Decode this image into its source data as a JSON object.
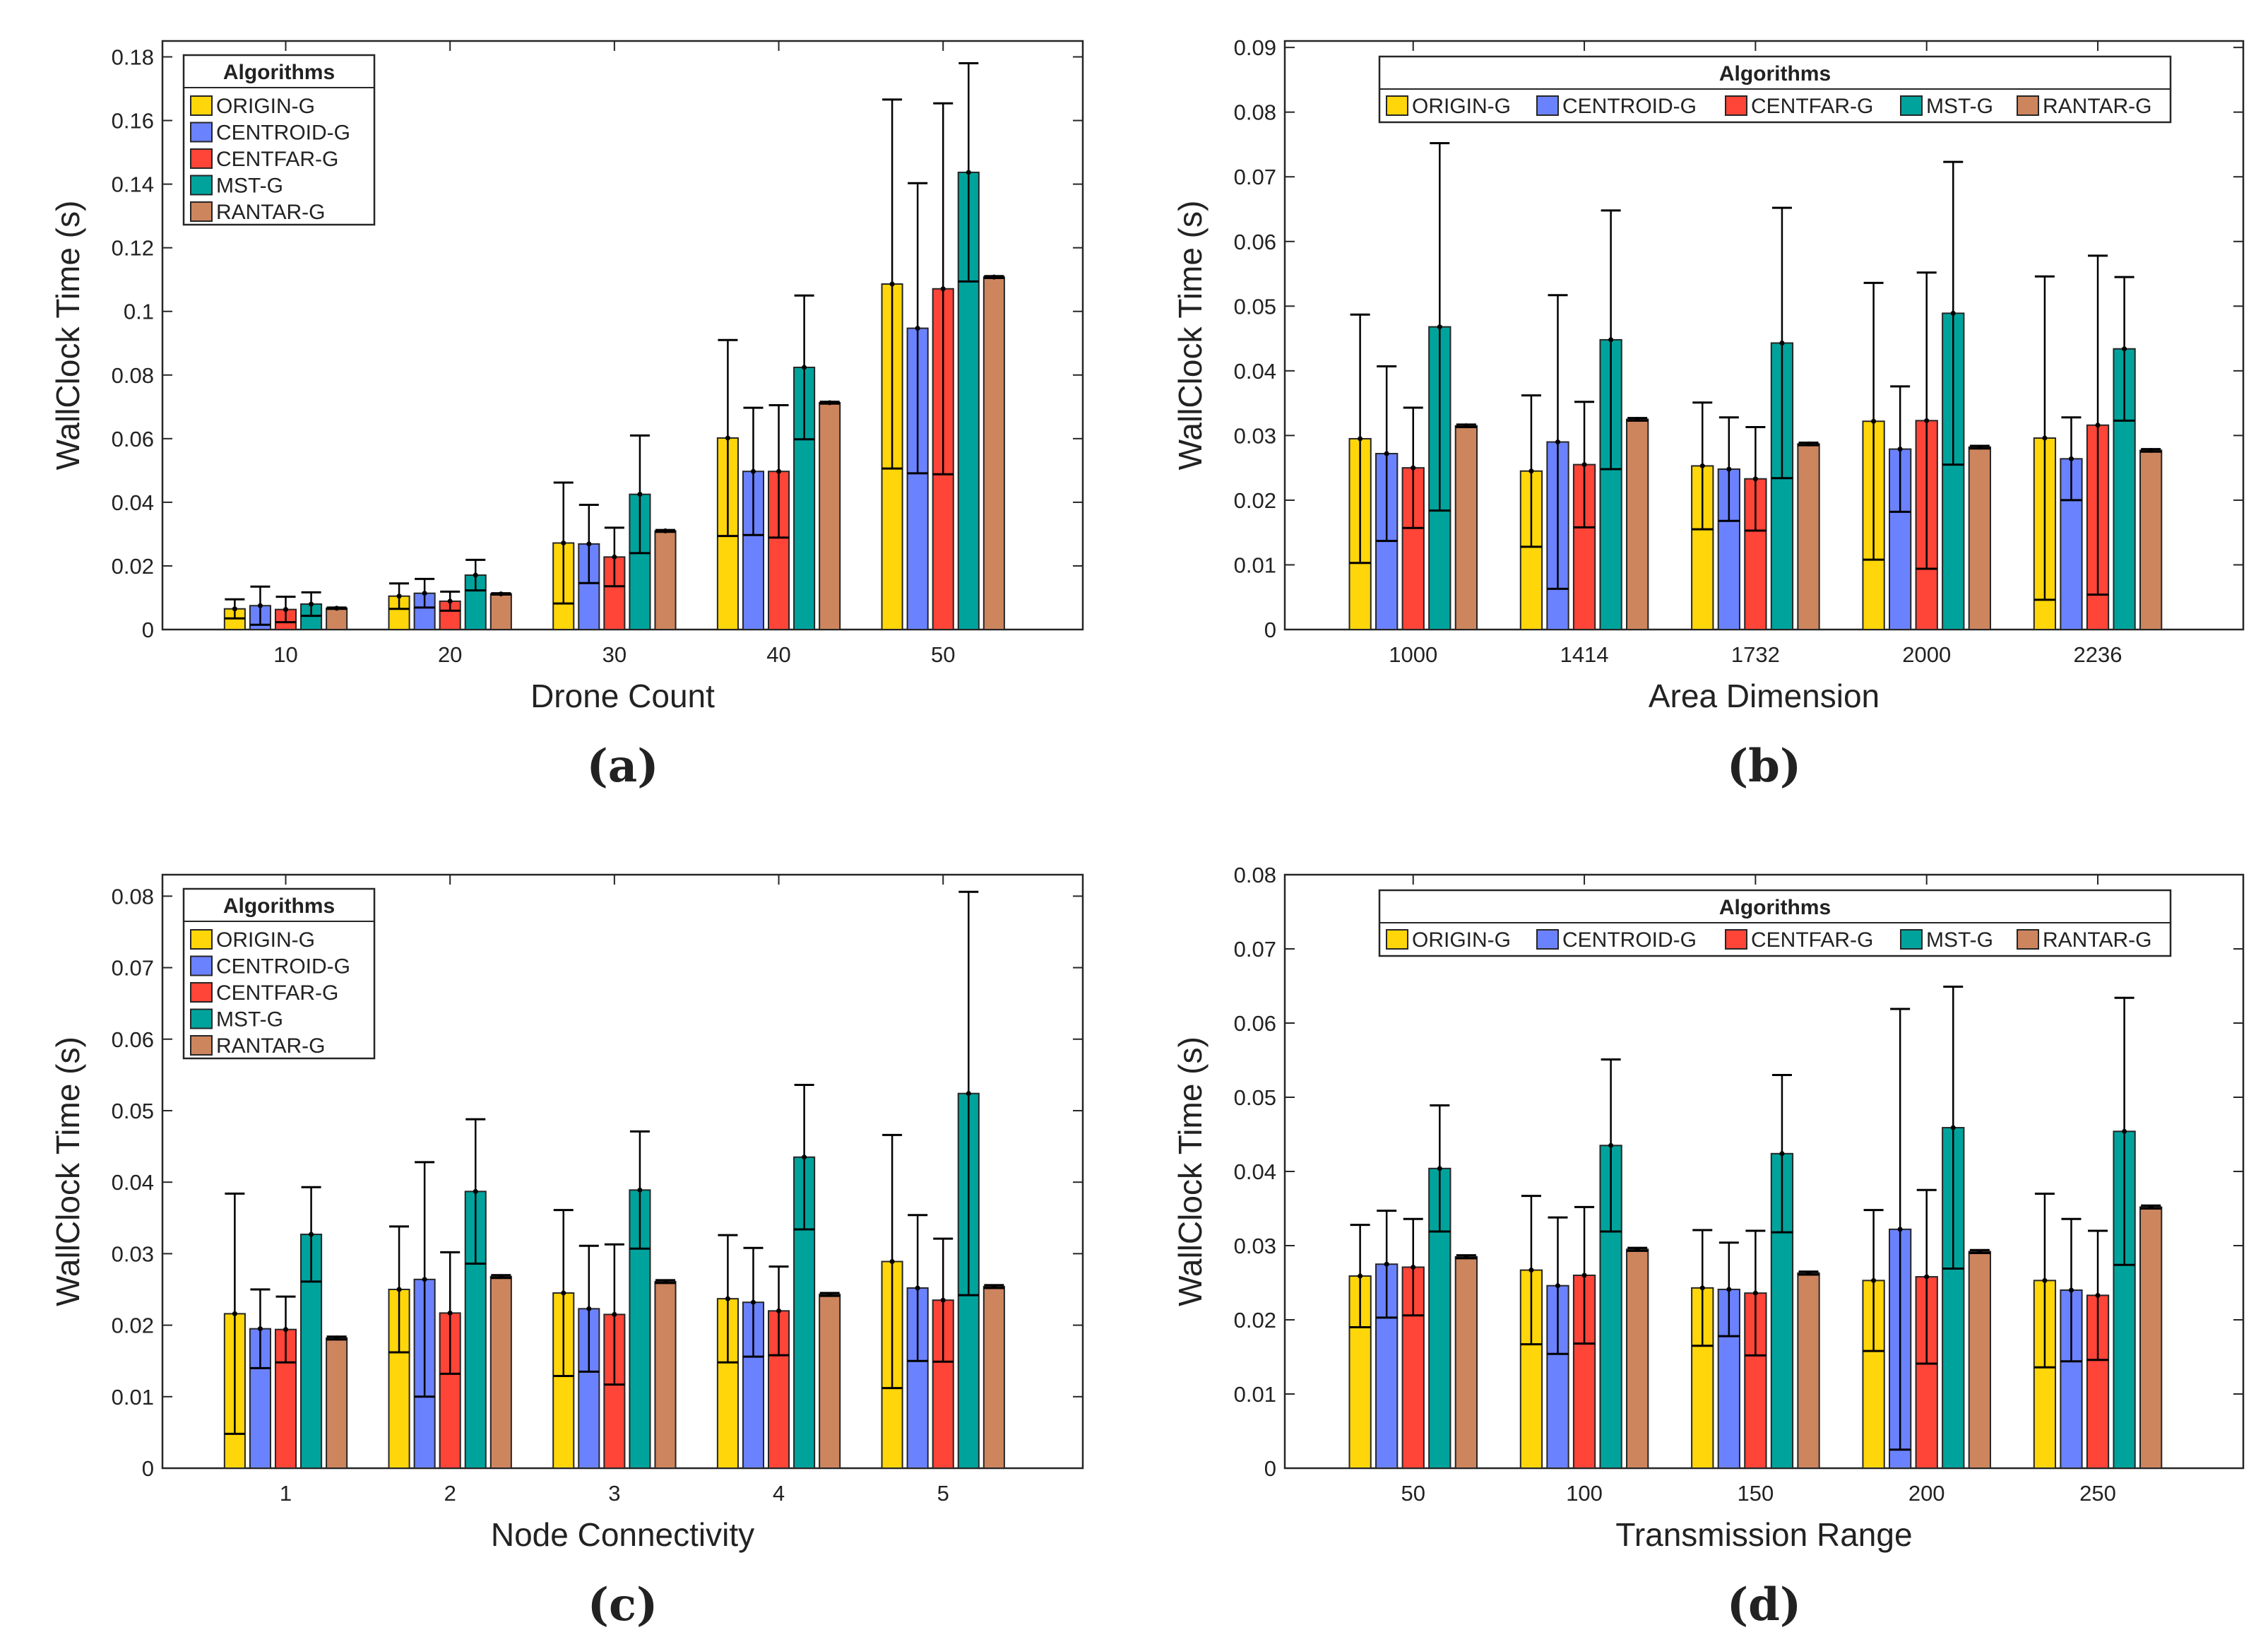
{
  "series_names": [
    "ORIGIN-G",
    "CENTROID-G",
    "CENTFAR-G",
    "MST-G",
    "RANTAR-G"
  ],
  "colors": {
    "ORIGIN-G": "#FFD60A",
    "CENTROID-G": "#6B82FF",
    "CENTFAR-G": "#FF4438",
    "MST-G": "#00A39C",
    "RANTAR-G": "#CD855E"
  },
  "chart_data": [
    {
      "type": "bar",
      "panel_label": "(a)",
      "title": "",
      "xlabel": "Drone Count",
      "ylabel": "WallClock Time (s)",
      "legend_title": "Algorithms",
      "legend_placement": "top-left",
      "legend_orientation": "vertical",
      "categories": [
        "10",
        "20",
        "30",
        "40",
        "50"
      ],
      "ylim": [
        0,
        0.185
      ],
      "yticks": [
        0,
        0.02,
        0.04,
        0.06,
        0.08,
        0.1,
        0.12,
        0.14,
        0.16,
        0.18
      ],
      "series": [
        {
          "name": "ORIGIN-G",
          "values": [
            0.0065,
            0.0105,
            0.0272,
            0.0602,
            0.1086
          ],
          "errors": [
            0.003,
            0.004,
            0.019,
            0.0308,
            0.058
          ]
        },
        {
          "name": "CENTROID-G",
          "values": [
            0.0075,
            0.0114,
            0.0269,
            0.0497,
            0.0947
          ],
          "errors": [
            0.006,
            0.0045,
            0.0123,
            0.02,
            0.0456
          ]
        },
        {
          "name": "CENTFAR-G",
          "values": [
            0.0063,
            0.0089,
            0.0228,
            0.0497,
            0.1071
          ],
          "errors": [
            0.004,
            0.003,
            0.0092,
            0.0208,
            0.0583
          ]
        },
        {
          "name": "MST-G",
          "values": [
            0.008,
            0.0171,
            0.0425,
            0.0824,
            0.1437
          ],
          "errors": [
            0.0037,
            0.0048,
            0.0185,
            0.0226,
            0.0343
          ]
        },
        {
          "name": "RANTAR-G",
          "values": [
            0.0067,
            0.0112,
            0.031,
            0.0713,
            0.1108
          ],
          "errors": [
            0.0002,
            0.0002,
            0.0003,
            0.0003,
            0.0003
          ]
        }
      ]
    },
    {
      "type": "bar",
      "panel_label": "(b)",
      "title": "",
      "xlabel": "Area Dimension",
      "ylabel": "WallClock Time (s)",
      "legend_title": "Algorithms",
      "legend_placement": "top",
      "legend_orientation": "horizontal",
      "categories": [
        "1000",
        "1414",
        "1732",
        "2000",
        "2236"
      ],
      "ylim": [
        0,
        0.091
      ],
      "yticks": [
        0,
        0.01,
        0.02,
        0.03,
        0.04,
        0.05,
        0.06,
        0.07,
        0.08,
        0.09
      ],
      "series": [
        {
          "name": "ORIGIN-G",
          "values": [
            0.0295,
            0.0245,
            0.0253,
            0.0322,
            0.0296
          ],
          "errors": [
            0.0192,
            0.0117,
            0.0098,
            0.0214,
            0.025
          ]
        },
        {
          "name": "CENTROID-G",
          "values": [
            0.0272,
            0.029,
            0.0248,
            0.0279,
            0.0264
          ],
          "errors": [
            0.0135,
            0.0227,
            0.008,
            0.0097,
            0.0064
          ]
        },
        {
          "name": "CENTFAR-G",
          "values": [
            0.025,
            0.0255,
            0.0233,
            0.0323,
            0.0316
          ],
          "errors": [
            0.0093,
            0.0097,
            0.008,
            0.0229,
            0.0262
          ]
        },
        {
          "name": "MST-G",
          "values": [
            0.0468,
            0.0448,
            0.0443,
            0.0489,
            0.0434
          ],
          "errors": [
            0.0284,
            0.02,
            0.0209,
            0.0234,
            0.0111
          ]
        },
        {
          "name": "RANTAR-G",
          "values": [
            0.0315,
            0.0325,
            0.0287,
            0.0282,
            0.0277
          ],
          "errors": [
            0.0002,
            0.0002,
            0.0002,
            0.0002,
            0.0002
          ]
        }
      ]
    },
    {
      "type": "bar",
      "panel_label": "(c)",
      "title": "",
      "xlabel": "Node Connectivity",
      "ylabel": "WallClock Time (s)",
      "legend_title": "Algorithms",
      "legend_placement": "top-left",
      "legend_orientation": "vertical",
      "categories": [
        "1",
        "2",
        "3",
        "4",
        "5"
      ],
      "ylim": [
        0,
        0.083
      ],
      "yticks": [
        0,
        0.01,
        0.02,
        0.03,
        0.04,
        0.05,
        0.06,
        0.07,
        0.08
      ],
      "series": [
        {
          "name": "ORIGIN-G",
          "values": [
            0.0216,
            0.025,
            0.0245,
            0.0237,
            0.0289
          ],
          "errors": [
            0.0168,
            0.0088,
            0.0116,
            0.0089,
            0.0177
          ]
        },
        {
          "name": "CENTROID-G",
          "values": [
            0.0195,
            0.0264,
            0.0223,
            0.0232,
            0.0252
          ],
          "errors": [
            0.0055,
            0.0164,
            0.0088,
            0.0076,
            0.0102
          ]
        },
        {
          "name": "CENTFAR-G",
          "values": [
            0.0194,
            0.0217,
            0.0215,
            0.022,
            0.0235
          ],
          "errors": [
            0.0046,
            0.0085,
            0.0098,
            0.0062,
            0.0086
          ]
        },
        {
          "name": "MST-G",
          "values": [
            0.0327,
            0.0387,
            0.0389,
            0.0435,
            0.0524
          ],
          "errors": [
            0.0066,
            0.0101,
            0.0082,
            0.0101,
            0.0282
          ]
        },
        {
          "name": "RANTAR-G",
          "values": [
            0.0182,
            0.0268,
            0.0261,
            0.0243,
            0.0254
          ],
          "errors": [
            0.0002,
            0.0002,
            0.0002,
            0.0002,
            0.0002
          ]
        }
      ]
    },
    {
      "type": "bar",
      "panel_label": "(d)",
      "title": "",
      "xlabel": "Transmission Range",
      "ylabel": "WallClock Time (s)",
      "legend_title": "Algorithms",
      "legend_placement": "top",
      "legend_orientation": "horizontal",
      "categories": [
        "50",
        "100",
        "150",
        "200",
        "250"
      ],
      "ylim": [
        0,
        0.08
      ],
      "yticks": [
        0,
        0.01,
        0.02,
        0.03,
        0.04,
        0.05,
        0.06,
        0.07,
        0.08
      ],
      "series": [
        {
          "name": "ORIGIN-G",
          "values": [
            0.0259,
            0.0267,
            0.0243,
            0.0253,
            0.0253
          ],
          "errors": [
            0.0069,
            0.01,
            0.0078,
            0.0095,
            0.0117
          ]
        },
        {
          "name": "CENTROID-G",
          "values": [
            0.0275,
            0.0246,
            0.0241,
            0.0322,
            0.024
          ],
          "errors": [
            0.0072,
            0.0092,
            0.0063,
            0.0297,
            0.0096
          ]
        },
        {
          "name": "CENTFAR-G",
          "values": [
            0.0271,
            0.026,
            0.0236,
            0.0258,
            0.0233
          ],
          "errors": [
            0.0065,
            0.0092,
            0.0084,
            0.0117,
            0.0087
          ]
        },
        {
          "name": "MST-G",
          "values": [
            0.0404,
            0.0435,
            0.0424,
            0.0459,
            0.0454
          ],
          "errors": [
            0.0085,
            0.0116,
            0.0106,
            0.019,
            0.018
          ]
        },
        {
          "name": "RANTAR-G",
          "values": [
            0.0285,
            0.0295,
            0.0263,
            0.0292,
            0.0352
          ],
          "errors": [
            0.0002,
            0.0002,
            0.0002,
            0.0002,
            0.0002
          ]
        }
      ]
    }
  ]
}
